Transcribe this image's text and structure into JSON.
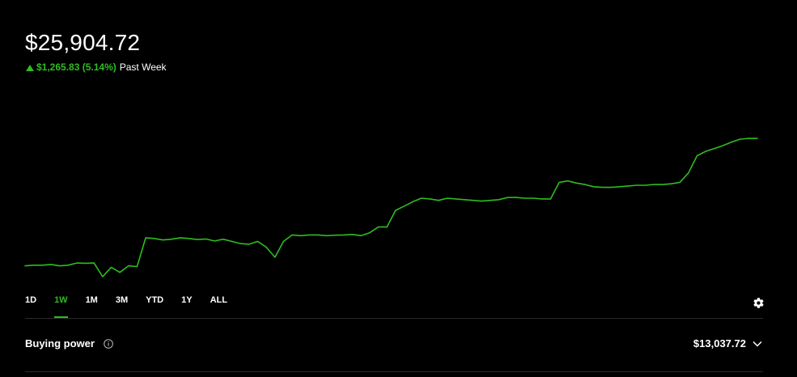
{
  "header": {
    "portfolio_value": "$25,904.72",
    "change_value": "$1,265.83 (5.14%)",
    "change_period": "Past Week"
  },
  "colors": {
    "accent": "#2ebd1f",
    "background": "#000000",
    "text": "#ffffff",
    "divider": "#2b2b2b"
  },
  "chart_data": {
    "type": "line",
    "series": [
      {
        "values": [
          0.075,
          0.08,
          0.08,
          0.085,
          0.075,
          0.08,
          0.095,
          0.093,
          0.095,
          0.0,
          0.065,
          0.03,
          0.075,
          0.07,
          0.27,
          0.265,
          0.255,
          0.26,
          0.27,
          0.265,
          0.258,
          0.262,
          0.248,
          0.26,
          0.245,
          0.23,
          0.225,
          0.245,
          0.205,
          0.135,
          0.245,
          0.29,
          0.285,
          0.29,
          0.29,
          0.285,
          0.288,
          0.29,
          0.293,
          0.285,
          0.305,
          0.345,
          0.345,
          0.46,
          0.49,
          0.52,
          0.545,
          0.54,
          0.53,
          0.545,
          0.54,
          0.535,
          0.53,
          0.525,
          0.53,
          0.535,
          0.55,
          0.55,
          0.545,
          0.545,
          0.54,
          0.54,
          0.655,
          0.665,
          0.65,
          0.64,
          0.625,
          0.62,
          0.62,
          0.625,
          0.63,
          0.635,
          0.635,
          0.64,
          0.64,
          0.645,
          0.655,
          0.72,
          0.84,
          0.87,
          0.89,
          0.91,
          0.935,
          0.955,
          0.96,
          0.96
        ]
      }
    ],
    "grid": false,
    "legend": "none"
  },
  "ranges": {
    "tabs": [
      {
        "label": "1D",
        "active": false
      },
      {
        "label": "1W",
        "active": true
      },
      {
        "label": "1M",
        "active": false
      },
      {
        "label": "3M",
        "active": false
      },
      {
        "label": "YTD",
        "active": false
      },
      {
        "label": "1Y",
        "active": false
      },
      {
        "label": "ALL",
        "active": false
      }
    ]
  },
  "buying_power": {
    "label": "Buying power",
    "value": "$13,037.72"
  },
  "icons": {
    "settings": "gear-icon",
    "info": "info-icon",
    "expand": "chevron-down-icon",
    "change": "up-arrow-icon"
  }
}
